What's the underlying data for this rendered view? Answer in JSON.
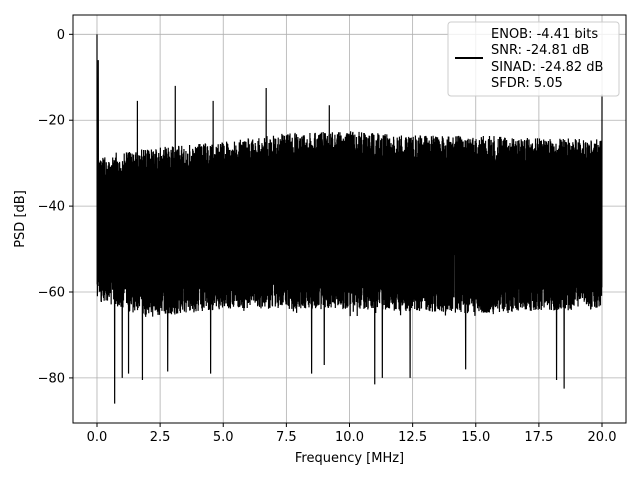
{
  "chart_data": {
    "type": "line",
    "title": "",
    "xlabel": "Frequency [MHz]",
    "ylabel": "PSD [dB]",
    "xlim": [
      -0.95,
      20.95
    ],
    "ylim": [
      -90.5,
      4.5
    ],
    "xticks": [
      0.0,
      2.5,
      5.0,
      7.5,
      10.0,
      12.5,
      15.0,
      17.5,
      20.0
    ],
    "xtick_labels": [
      "0.0",
      "2.5",
      "5.0",
      "7.5",
      "10.0",
      "12.5",
      "15.0",
      "17.5",
      "20.0"
    ],
    "yticks": [
      0,
      -20,
      -40,
      -60,
      -80
    ],
    "ytick_labels": [
      "0",
      "−20",
      "−40",
      "−60",
      "−80"
    ],
    "grid": true,
    "legend_placement": "top-right",
    "series": [
      {
        "color": "#000000",
        "x_range": [
          0,
          20
        ],
        "noise_floor_upper": [
          [
            0,
            -29
          ],
          [
            1.5,
            -27
          ],
          [
            3,
            -26
          ],
          [
            5,
            -25
          ],
          [
            7.5,
            -23
          ],
          [
            10,
            -22.5
          ],
          [
            12.5,
            -23.5
          ],
          [
            15,
            -23.5
          ],
          [
            17.5,
            -24
          ],
          [
            20,
            -24.5
          ]
        ],
        "noise_floor_lower": [
          [
            0,
            -62
          ],
          [
            2,
            -66
          ],
          [
            5,
            -64
          ],
          [
            10,
            -64
          ],
          [
            15,
            -65
          ],
          [
            20,
            -64
          ]
        ],
        "noise_band_center": -45,
        "spikes": [
          {
            "x": 0.0,
            "y": 0
          },
          {
            "x": 0.05,
            "y": -6
          },
          {
            "x": 1.6,
            "y": -15.5
          },
          {
            "x": 3.1,
            "y": -12
          },
          {
            "x": 4.6,
            "y": -15.5
          },
          {
            "x": 6.7,
            "y": -12.5
          },
          {
            "x": 9.2,
            "y": -16.5
          },
          {
            "x": 20.0,
            "y": -14
          }
        ],
        "dips": [
          {
            "x": 0.7,
            "y": -86
          },
          {
            "x": 1.0,
            "y": -80
          },
          {
            "x": 1.25,
            "y": -79
          },
          {
            "x": 1.8,
            "y": -80.5
          },
          {
            "x": 2.8,
            "y": -78.5
          },
          {
            "x": 4.5,
            "y": -79
          },
          {
            "x": 8.5,
            "y": -79
          },
          {
            "x": 9.0,
            "y": -77
          },
          {
            "x": 11.0,
            "y": -81.5
          },
          {
            "x": 11.3,
            "y": -80
          },
          {
            "x": 12.4,
            "y": -80
          },
          {
            "x": 14.6,
            "y": -78
          },
          {
            "x": 18.2,
            "y": -80.5
          },
          {
            "x": 18.5,
            "y": -82.5
          }
        ]
      }
    ],
    "legend_entries": [
      "ENOB: -4.41 bits",
      "SNR: -24.81 dB",
      "SINAD: -24.82 dB",
      "SFDR: 5.05"
    ]
  }
}
